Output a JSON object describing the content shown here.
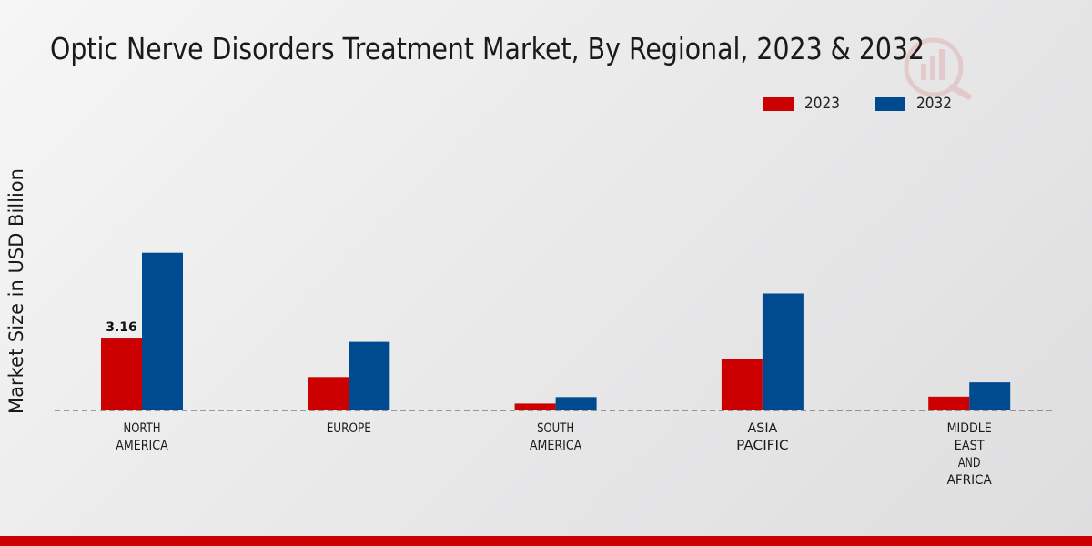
{
  "chart_data": {
    "type": "bar",
    "title": "Optic Nerve Disorders Treatment Market, By Regional, 2023 & 2032",
    "ylabel": "Market Size in USD Billion",
    "xlabel": "",
    "categories": [
      [
        "NORTH",
        "AMERICA"
      ],
      [
        "EUROPE"
      ],
      [
        "SOUTH",
        "AMERICA"
      ],
      [
        "ASIA",
        "PACIFIC"
      ],
      [
        "MIDDLE",
        "EAST",
        "AND",
        "AFRICA"
      ]
    ],
    "series": [
      {
        "name": "2023",
        "color": "#cc0000",
        "values": [
          3.16,
          1.45,
          0.3,
          2.22,
          0.6
        ]
      },
      {
        "name": "2032",
        "color": "#004a8f",
        "values": [
          6.85,
          2.98,
          0.58,
          5.08,
          1.22
        ]
      }
    ],
    "data_labels": [
      {
        "series": 0,
        "index": 0,
        "text": "3.16"
      }
    ],
    "ylim": [
      0,
      10
    ],
    "grid": false,
    "legend_position": "top-right",
    "baseline_style": "dashed"
  },
  "watermark": {
    "icon": "brand-logo-icon"
  }
}
